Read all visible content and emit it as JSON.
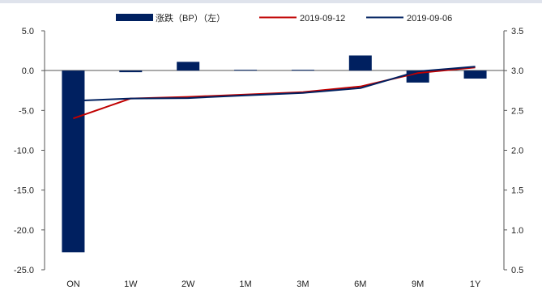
{
  "chart_data": {
    "type": "bar+line",
    "title": "",
    "categories": [
      "ON",
      "1W",
      "2W",
      "1M",
      "3M",
      "6M",
      "9M",
      "1Y"
    ],
    "bar_series": {
      "name": "涨跌（BP）（左）",
      "color": "#002060",
      "values": [
        -22.8,
        -0.2,
        1.1,
        0.1,
        0.1,
        1.9,
        -1.5,
        -1.0
      ]
    },
    "line_series": [
      {
        "name": "2019-09-12",
        "color": "#c00000",
        "values": [
          2.4,
          2.65,
          2.67,
          2.7,
          2.73,
          2.8,
          2.97,
          3.04
        ]
      },
      {
        "name": "2019-09-06",
        "color": "#002060",
        "values": [
          2.62,
          2.65,
          2.655,
          2.69,
          2.72,
          2.78,
          2.99,
          3.05
        ]
      }
    ],
    "left_axis": {
      "ylim": [
        -25.0,
        5.0
      ],
      "ticks": [
        "5.0",
        "0.0",
        "-5.0",
        "-10.0",
        "-15.0",
        "-20.0",
        "-25.0"
      ]
    },
    "right_axis": {
      "ylim": [
        0.5,
        3.5
      ],
      "ticks": [
        "3.5",
        "3.0",
        "2.5",
        "2.0",
        "1.5",
        "1.0",
        "0.5"
      ]
    },
    "legend_position": "top",
    "grid": false
  }
}
